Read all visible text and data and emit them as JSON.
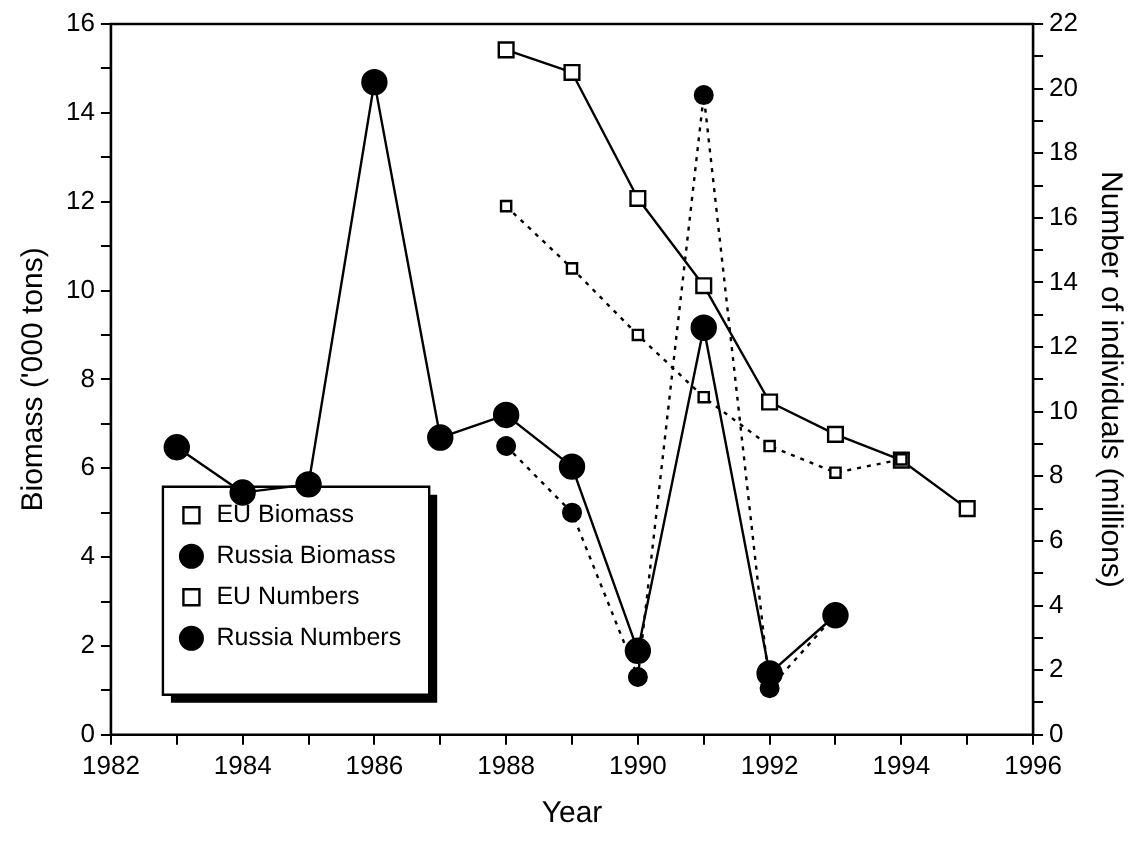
{
  "chart_data": {
    "type": "line",
    "xlabel": "Year",
    "ylabel": "Biomass ('000 tons)",
    "y2label": "Number of individuals (millions)",
    "xlim": [
      1982,
      1996
    ],
    "xticks": [
      1982,
      {
        "value": 1983,
        "label": null
      },
      1984,
      {
        "value": 1985,
        "label": null
      },
      1986,
      {
        "value": 1987,
        "label": null
      },
      1988,
      {
        "value": 1989,
        "label": null
      },
      1990,
      {
        "value": 1991,
        "label": null
      },
      1992,
      {
        "value": 1993,
        "label": null
      },
      1994,
      {
        "value": 1995,
        "label": null
      },
      1996
    ],
    "ylim": [
      0,
      16
    ],
    "yticks": [
      0,
      {
        "value": 1,
        "label": null
      },
      2,
      {
        "value": 3,
        "label": null
      },
      4,
      {
        "value": 5,
        "label": null
      },
      6,
      {
        "value": 7,
        "label": null
      },
      8,
      {
        "value": 9,
        "label": null
      },
      10,
      {
        "value": 11,
        "label": null
      },
      12,
      {
        "value": 13,
        "label": null
      },
      14,
      {
        "value": 15,
        "label": null
      },
      16
    ],
    "y2lim": [
      0,
      22
    ],
    "y2ticks": [
      0,
      {
        "value": 1,
        "label": null
      },
      2,
      {
        "value": 3,
        "label": null
      },
      4,
      {
        "value": 5,
        "label": null
      },
      6,
      {
        "value": 7,
        "label": null
      },
      8,
      {
        "value": 9,
        "label": null
      },
      10,
      {
        "value": 11,
        "label": null
      },
      12,
      {
        "value": 13,
        "label": null
      },
      14,
      {
        "value": 15,
        "label": null
      },
      16,
      {
        "value": 17,
        "label": null
      },
      18,
      {
        "value": 19,
        "label": null
      },
      20,
      {
        "value": 21,
        "label": null
      },
      22
    ],
    "legend": "bottom left",
    "grid": false,
    "series": [
      {
        "name": "EU Biomass",
        "color": "#000000",
        "line_style": "dotted",
        "marker": "square",
        "x": [
          1988,
          1989,
          1990,
          1991,
          1992,
          1993,
          1994
        ],
        "values": [
          11.9,
          10.5,
          9.0,
          7.6,
          6.5,
          5.9,
          6.2
        ]
      },
      {
        "name": "Russia Biomass",
        "color": "#000000",
        "line_style": "dotted",
        "marker": "circle",
        "x": [
          1988,
          1989,
          1990,
          1991,
          1992,
          1993
        ],
        "values": [
          6.5,
          5.0,
          1.3,
          14.4,
          1.05,
          2.7
        ]
      },
      {
        "name": "EU Numbers",
        "color": "#000000",
        "line_style": "solid",
        "marker": "square",
        "axis": "y2",
        "x": [
          1988,
          1989,
          1990,
          1991,
          1992,
          1993,
          1994,
          1995
        ],
        "values": [
          21.2,
          20.5,
          16.6,
          13.9,
          10.3,
          9.3,
          8.5,
          7.0
        ]
      },
      {
        "name": "Russia Numbers",
        "color": "#000000",
        "line_style": "solid",
        "marker": "circle",
        "axis": "y2",
        "x": [
          1983,
          1984,
          1985,
          1986,
          1987,
          1988,
          1989,
          1990,
          1991,
          1992,
          1993
        ],
        "values": [
          8.9,
          7.5,
          7.75,
          20.2,
          9.2,
          9.9,
          8.3,
          2.6,
          12.6,
          1.9,
          3.7
        ]
      }
    ]
  }
}
